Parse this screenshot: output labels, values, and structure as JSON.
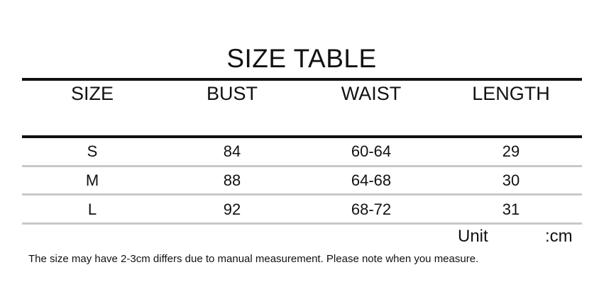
{
  "title": "SIZE TABLE",
  "columns": [
    "SIZE",
    "BUST",
    "WAIST",
    "LENGTH"
  ],
  "rows": [
    [
      "S",
      "84",
      "60-64",
      "29"
    ],
    [
      "M",
      "88",
      "64-68",
      "30"
    ],
    [
      "L",
      "92",
      "68-72",
      "31"
    ]
  ],
  "unit_label": "Unit",
  "unit_value": ":cm",
  "note": "The size may have 2-3cm differs due to manual measurement. Please note when you measure."
}
